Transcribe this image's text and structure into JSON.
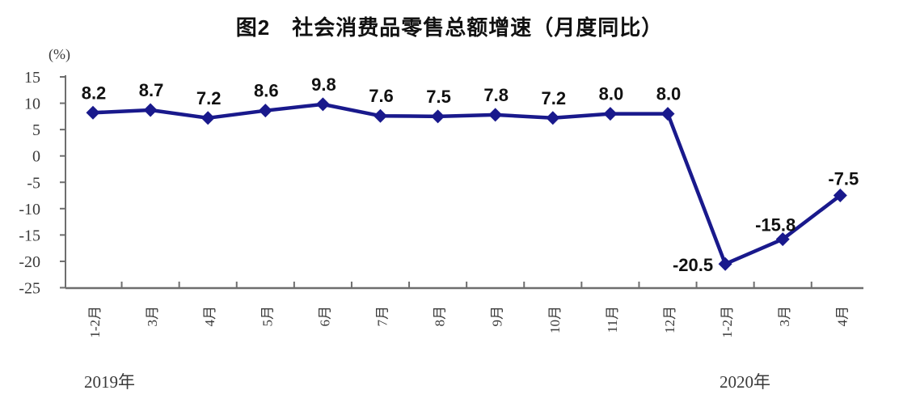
{
  "page": {
    "background": "#ffffff"
  },
  "chart_data": {
    "type": "line",
    "title": "图2　社会消费品零售总额增速（月度同比）",
    "unit_label": "(%)",
    "categories": [
      "1-2月",
      "3月",
      "4月",
      "5月",
      "6月",
      "7月",
      "8月",
      "9月",
      "10月",
      "11月",
      "12月",
      "1-2月",
      "3月",
      "4月"
    ],
    "values": [
      8.2,
      8.7,
      7.2,
      8.6,
      9.8,
      7.6,
      7.5,
      7.8,
      7.2,
      8.0,
      8.0,
      -20.5,
      -15.8,
      -7.5
    ],
    "data_labels": [
      "8.2",
      "8.7",
      "7.2",
      "8.6",
      "9.8",
      "7.6",
      "7.5",
      "7.8",
      "7.2",
      "8.0",
      "8.0",
      "-20.5",
      "-15.8",
      "-7.5"
    ],
    "ylim": [
      -25,
      15
    ],
    "yticks": [
      15,
      10,
      5,
      0,
      -5,
      -10,
      -15,
      -20,
      -25
    ],
    "ytick_step": 5,
    "grid": false,
    "legend": "none",
    "marker": "diamond",
    "year_groups": [
      {
        "label": "2019年",
        "start_index": 0,
        "end_index": 10
      },
      {
        "label": "2020年",
        "start_index": 11,
        "end_index": 13
      }
    ]
  },
  "colors": {
    "line": "#19198C",
    "axis": "#6e6e6e",
    "tick_label": "#3a3a3a",
    "data_label": "#111111",
    "title": "#111111"
  }
}
